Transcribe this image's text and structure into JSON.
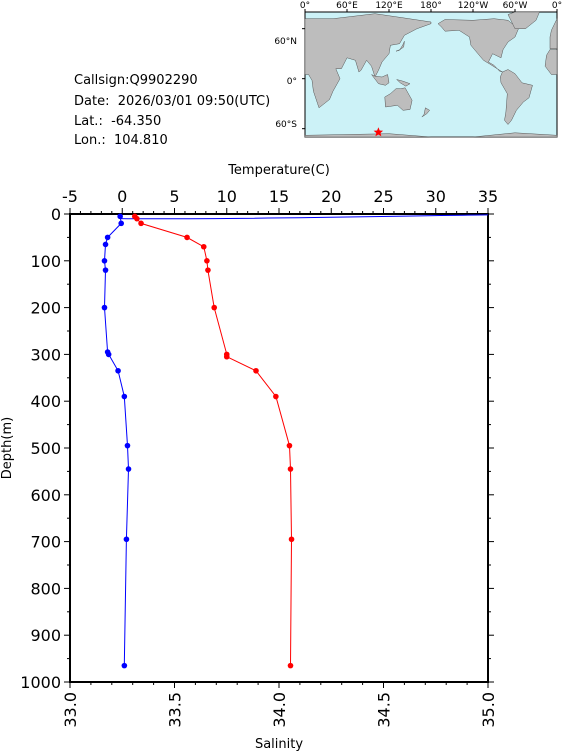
{
  "station": {
    "callsign_label": "Callsign:Q9902290",
    "date_label": "Date:  2026/03/01 09:50(UTC)",
    "lat_label": "Lat.:  -64.350",
    "lon_label": "Lon.:  104.810"
  },
  "map": {
    "lon_ticks": [
      "0°",
      "60°E",
      "120°E",
      "180°",
      "120°W",
      "60°W",
      "0°"
    ],
    "lat_ticks": [
      "60°N",
      "0°",
      "60°S"
    ],
    "ocean_color": "#ccf2f7",
    "land_color": "#bdbdbd",
    "marker_lon": 104.81,
    "marker_lat": -64.35,
    "marker_color": "#ff0000"
  },
  "chart_data": {
    "type": "line",
    "title": "",
    "ylabel": "Depth(m)",
    "ylim": [
      0,
      1000
    ],
    "yticks": [
      "0",
      "100",
      "200",
      "300",
      "400",
      "500",
      "600",
      "700",
      "800",
      "900",
      "1000"
    ],
    "y_inverted": true,
    "temperature_axis": {
      "label": "Temperature(C)",
      "range": [
        -5,
        35
      ],
      "ticks": [
        "-5",
        "0",
        "5",
        "10",
        "15",
        "20",
        "25",
        "30",
        "35"
      ]
    },
    "salinity_axis": {
      "label": "Salinity",
      "range": [
        33.0,
        35.0
      ],
      "ticks": [
        "33.0",
        "33.5",
        "34.0",
        "34.5",
        "35.0"
      ]
    },
    "series": [
      {
        "axis": "temperature",
        "color": "#ff0000",
        "depth": [
          5,
          10,
          20,
          50,
          70,
          100,
          120,
          200,
          300,
          305,
          335,
          390,
          495,
          545,
          695,
          965
        ],
        "values": [
          1.2,
          1.4,
          1.8,
          6.2,
          7.8,
          8.1,
          8.2,
          8.8,
          10.0,
          10.0,
          12.8,
          14.7,
          16.0,
          16.1,
          16.2,
          16.1
        ]
      },
      {
        "axis": "salinity",
        "color": "#0000ff",
        "depth": [
          5,
          20,
          50,
          65,
          100,
          120,
          200,
          295,
          300,
          335,
          390,
          495,
          545,
          695,
          965
        ],
        "values": [
          33.24,
          33.245,
          33.18,
          33.17,
          33.165,
          33.17,
          33.165,
          33.18,
          33.185,
          33.23,
          33.26,
          33.275,
          33.28,
          33.27,
          33.26
        ]
      }
    ]
  }
}
